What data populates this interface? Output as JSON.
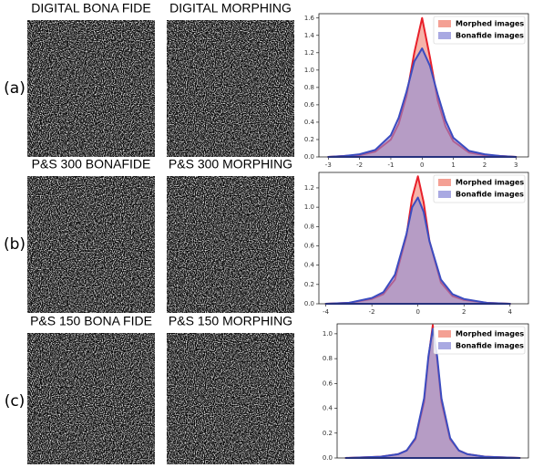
{
  "panels": [
    {
      "label": "(a)",
      "images": [
        "DIGITAL BONA FIDE",
        "DIGITAL MORPHING"
      ]
    },
    {
      "label": "(b)",
      "images": [
        "P&S 300 BONAFIDE",
        "P&S 300 MORPHING"
      ]
    },
    {
      "label": "(c)",
      "images": [
        "P&S 150 BONA FIDE",
        "P&S 150 MORPHING"
      ]
    }
  ],
  "chart_data": [
    {
      "type": "area",
      "legend": "upper right",
      "x": [
        -3,
        -2.5,
        -2,
        -1.5,
        -1,
        -0.75,
        -0.5,
        -0.25,
        0,
        0.25,
        0.5,
        0.75,
        1,
        1.5,
        2,
        2.5,
        3
      ],
      "series": [
        {
          "name": "Morphed images",
          "color": "#e8202a",
          "fill": "#f08070",
          "values": [
            0,
            0.01,
            0.02,
            0.06,
            0.2,
            0.38,
            0.7,
            1.2,
            1.6,
            1.15,
            0.65,
            0.35,
            0.18,
            0.05,
            0.02,
            0.01,
            0
          ]
        },
        {
          "name": "Bonafide images",
          "color": "#3b4cc0",
          "fill": "#8c8cd8",
          "values": [
            0,
            0.01,
            0.03,
            0.08,
            0.25,
            0.45,
            0.75,
            1.1,
            1.25,
            1.05,
            0.72,
            0.42,
            0.22,
            0.07,
            0.03,
            0.01,
            0
          ]
        }
      ],
      "xlim": [
        -3.3,
        3.4
      ],
      "xticks": [
        -3,
        -2,
        -1,
        0,
        1,
        2,
        3
      ],
      "ylim": [
        0,
        1.65
      ],
      "yticks": [
        {
          "value": 0,
          "label": "0.0"
        },
        0.2,
        0.4,
        0.6,
        0.8,
        {
          "value": 1,
          "label": "1.0"
        },
        1.2,
        1.4,
        1.6
      ]
    },
    {
      "type": "area",
      "legend": "upper right",
      "x": [
        -4,
        -3,
        -2,
        -1.5,
        -1,
        -0.5,
        -0.25,
        0,
        0.25,
        0.5,
        1,
        1.5,
        2,
        3,
        4
      ],
      "series": [
        {
          "name": "Morphed images",
          "color": "#e8202a",
          "fill": "#f08070",
          "values": [
            0,
            0.01,
            0.05,
            0.1,
            0.25,
            0.7,
            1.1,
            1.32,
            1.05,
            0.65,
            0.22,
            0.08,
            0.04,
            0.01,
            0
          ]
        },
        {
          "name": "Bonafide images",
          "color": "#3b4cc0",
          "fill": "#8c8cd8",
          "values": [
            0,
            0.01,
            0.06,
            0.12,
            0.3,
            0.72,
            1.0,
            1.1,
            0.95,
            0.65,
            0.25,
            0.1,
            0.05,
            0.01,
            0
          ]
        }
      ],
      "xlim": [
        -4.3,
        4.8
      ],
      "xticks": [
        -4,
        -2,
        0,
        2,
        4
      ],
      "ylim": [
        0,
        1.36
      ],
      "yticks": [
        {
          "value": 0,
          "label": "0.0"
        },
        0.2,
        0.4,
        0.6,
        0.8,
        {
          "value": 1,
          "label": "1.0"
        },
        1.2
      ]
    },
    {
      "type": "area",
      "legend": "upper right",
      "x": [
        -5,
        -3,
        -2,
        -1.5,
        -1,
        -0.5,
        -0.25,
        0,
        0.25,
        0.5,
        1,
        1.5,
        2,
        3,
        5
      ],
      "series": [
        {
          "name": "Morphed images",
          "color": "#e8202a",
          "fill": "#f08070",
          "values": [
            0,
            0.01,
            0.03,
            0.06,
            0.15,
            0.45,
            0.8,
            1.07,
            0.8,
            0.45,
            0.15,
            0.06,
            0.03,
            0.01,
            0
          ]
        },
        {
          "name": "Bonafide images",
          "color": "#3b4cc0",
          "fill": "#8c8cd8",
          "values": [
            0,
            0.01,
            0.03,
            0.06,
            0.16,
            0.48,
            0.82,
            1.04,
            0.82,
            0.48,
            0.16,
            0.06,
            0.03,
            0.01,
            0
          ]
        }
      ],
      "xlim": [
        -5.5,
        5.5
      ],
      "ylim": [
        0,
        1.08
      ],
      "yticks": [
        {
          "value": 0,
          "label": "0.0"
        },
        0.2,
        0.4,
        0.6,
        0.8,
        {
          "value": 1,
          "label": "1.0"
        }
      ]
    }
  ]
}
